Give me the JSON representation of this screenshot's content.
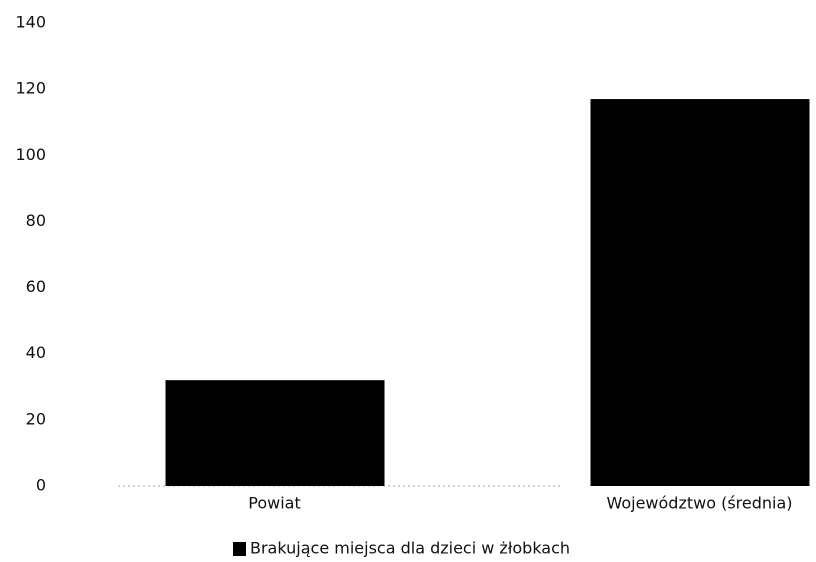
{
  "chart_data": {
    "type": "bar",
    "categories": [
      "Powiat",
      "Województwo (średnia)"
    ],
    "series": [
      {
        "name": "Brakujące miejsca dla dzieci w żłobkach",
        "color": "#000000",
        "values": [
          32,
          117
        ]
      }
    ],
    "ylim": [
      0,
      140
    ],
    "yticks": [
      0,
      20,
      40,
      60,
      80,
      100,
      120,
      140
    ],
    "grid": false,
    "legend": "bottom"
  }
}
